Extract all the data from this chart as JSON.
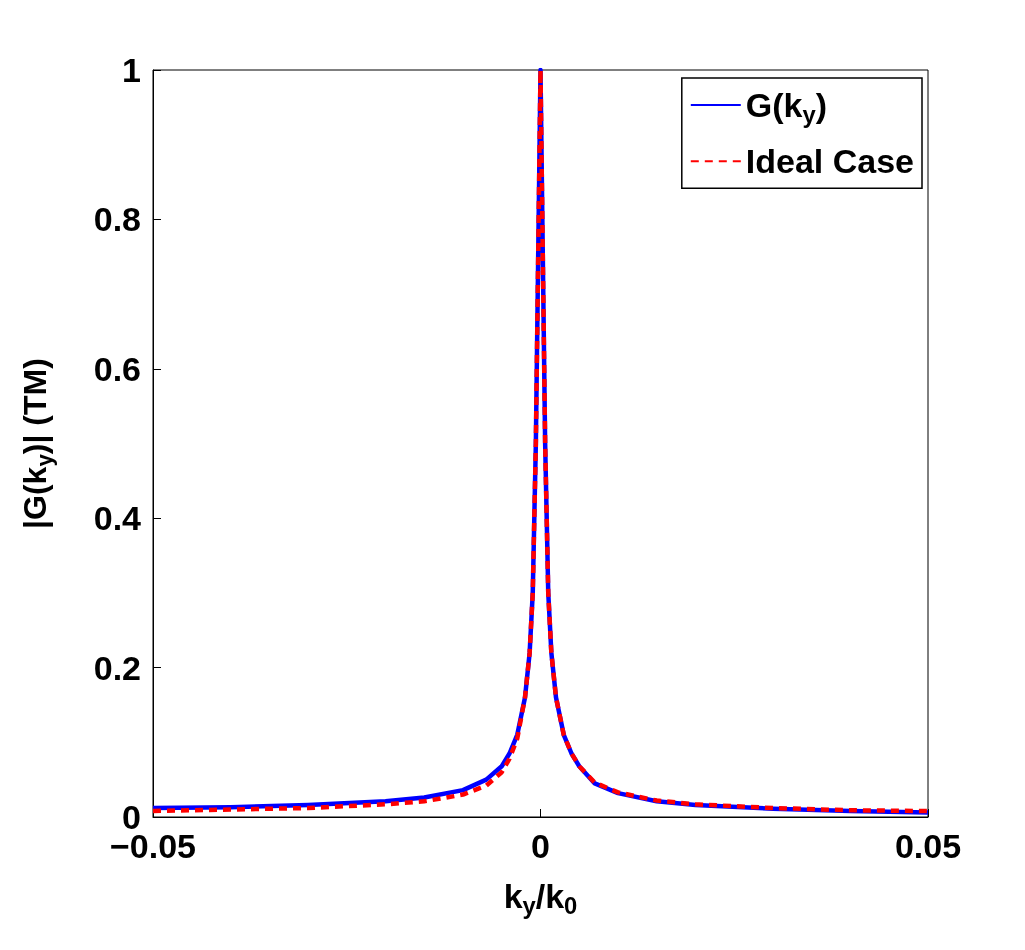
{
  "chart_data": {
    "type": "line",
    "xlabel": "k$_{y}$/k$_{0}$",
    "ylabel": "|G(k$_{y}$)| (TM)",
    "xlim": [
      -0.05,
      0.05
    ],
    "xticks": [
      {
        "value": -0.05,
        "label": "−0.05"
      },
      0,
      0.05
    ],
    "ylim": [
      0,
      1
    ],
    "yticks": [
      0,
      0.2,
      0.4,
      0.6,
      0.8,
      1
    ],
    "grid": false,
    "legend": "top right",
    "marker": "none",
    "series": [
      {
        "name": "G(k$_{y}$)",
        "color": "#0000ff",
        "line_style": "solid",
        "x": [
          -0.05,
          -0.04,
          -0.03,
          -0.02,
          -0.015,
          -0.01,
          -0.007,
          -0.005,
          -0.004,
          -0.003,
          -0.002,
          -0.0014,
          -0.001,
          -0.0006,
          -0.0003,
          0,
          0.0003,
          0.0006,
          0.001,
          0.0014,
          0.002,
          0.003,
          0.004,
          0.005,
          0.007,
          0.01,
          0.015,
          0.02,
          0.03,
          0.04,
          0.05
        ],
        "values": [
          0.012,
          0.013,
          0.016,
          0.021,
          0.026,
          0.036,
          0.05,
          0.068,
          0.085,
          0.11,
          0.16,
          0.22,
          0.3,
          0.5,
          0.75,
          1,
          0.75,
          0.5,
          0.3,
          0.22,
          0.16,
          0.11,
          0.085,
          0.068,
          0.045,
          0.032,
          0.021,
          0.016,
          0.011,
          0.008,
          0.006
        ]
      },
      {
        "name": "Ideal Case",
        "color": "#ff0000",
        "line_style": "dashed",
        "x": [
          -0.05,
          -0.04,
          -0.03,
          -0.02,
          -0.015,
          -0.01,
          -0.007,
          -0.005,
          -0.004,
          -0.003,
          -0.002,
          -0.0014,
          -0.001,
          -0.0006,
          -0.0003,
          0,
          0.0003,
          0.0006,
          0.001,
          0.0014,
          0.002,
          0.003,
          0.004,
          0.005,
          0.007,
          0.01,
          0.015,
          0.02,
          0.03,
          0.04,
          0.05
        ],
        "values": [
          0.008,
          0.01,
          0.012,
          0.017,
          0.021,
          0.03,
          0.042,
          0.06,
          0.078,
          0.105,
          0.16,
          0.22,
          0.3,
          0.5,
          0.75,
          1,
          0.75,
          0.5,
          0.3,
          0.22,
          0.16,
          0.11,
          0.085,
          0.068,
          0.046,
          0.033,
          0.022,
          0.017,
          0.012,
          0.009,
          0.008
        ]
      }
    ]
  }
}
